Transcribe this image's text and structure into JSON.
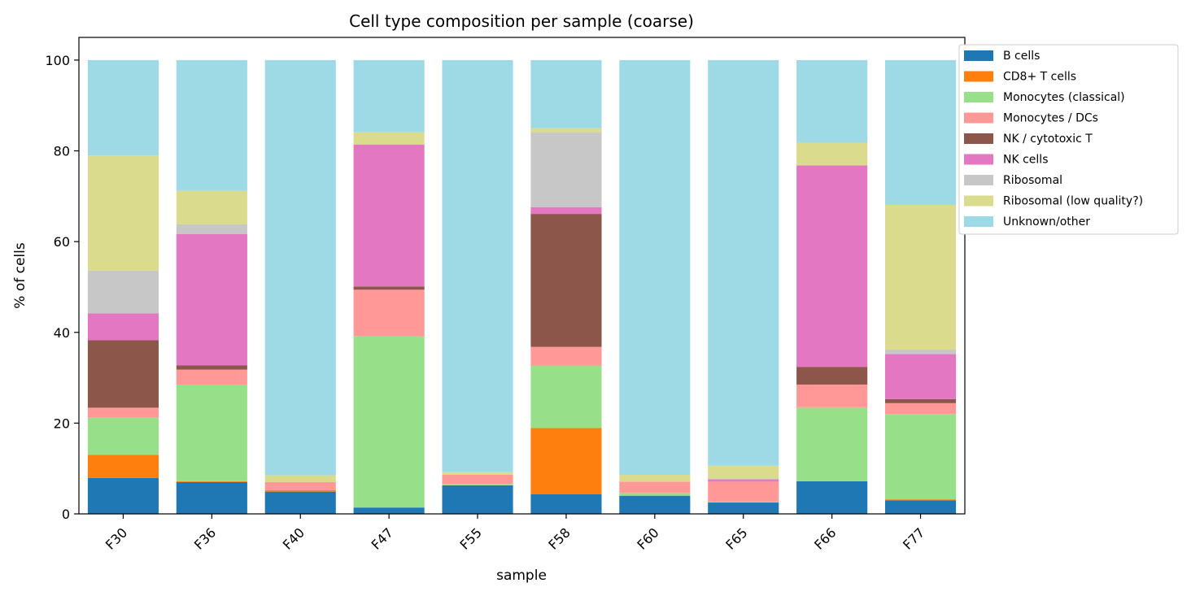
{
  "chart_data": {
    "type": "bar",
    "stacked": true,
    "title": "Cell type composition per sample (coarse)",
    "xlabel": "sample",
    "ylabel": "% of cells",
    "ylim": [
      0,
      105
    ],
    "yticks": [
      0,
      20,
      40,
      60,
      80,
      100
    ],
    "grid": false,
    "legend_position": "outside-top-right",
    "categories": [
      "F30",
      "F36",
      "F40",
      "F47",
      "F55",
      "F58",
      "F60",
      "F65",
      "F66",
      "F77"
    ],
    "series": [
      {
        "name": "B cells",
        "color": "#1f77b4",
        "values": [
          7.9,
          7.0,
          4.9,
          1.4,
          6.3,
          4.3,
          4.0,
          2.5,
          7.2,
          3.0
        ]
      },
      {
        "name": "CD8+ T cells",
        "color": "#ff7f0e",
        "values": [
          5.1,
          0.2,
          0.3,
          0.0,
          0.0,
          14.6,
          0.0,
          0.0,
          0.0,
          0.2
        ]
      },
      {
        "name": "Monocytes (classical)",
        "color": "#98df8a",
        "values": [
          8.2,
          21.3,
          0.0,
          37.7,
          0.3,
          13.8,
          0.6,
          0.2,
          16.3,
          18.8
        ]
      },
      {
        "name": "Monocytes / DCs",
        "color": "#ff9896",
        "values": [
          2.2,
          3.3,
          1.8,
          10.3,
          2.0,
          4.1,
          2.5,
          4.4,
          5.0,
          2.4
        ]
      },
      {
        "name": "NK / cytotoxic T",
        "color": "#8c564b",
        "values": [
          14.9,
          0.9,
          0.0,
          0.7,
          0.0,
          29.3,
          0.0,
          0.0,
          3.9,
          0.9
        ]
      },
      {
        "name": "NK cells",
        "color": "#e377c2",
        "values": [
          5.9,
          29.0,
          0.0,
          31.3,
          0.0,
          1.5,
          0.0,
          0.5,
          44.4,
          9.9
        ]
      },
      {
        "name": "Ribosomal",
        "color": "#c7c7c7",
        "values": [
          9.4,
          2.1,
          0.0,
          0.0,
          0.0,
          16.5,
          0.0,
          0.2,
          0.0,
          1.0
        ]
      },
      {
        "name": "Ribosomal (low quality?)",
        "color": "#dbdb8d",
        "values": [
          25.4,
          7.4,
          1.5,
          2.7,
          0.6,
          0.9,
          1.5,
          2.8,
          5.0,
          31.9
        ]
      },
      {
        "name": "Unknown/other",
        "color": "#9edae5",
        "values": [
          21.0,
          28.8,
          91.5,
          15.9,
          90.8,
          15.0,
          91.4,
          89.4,
          18.2,
          31.9
        ]
      }
    ]
  }
}
